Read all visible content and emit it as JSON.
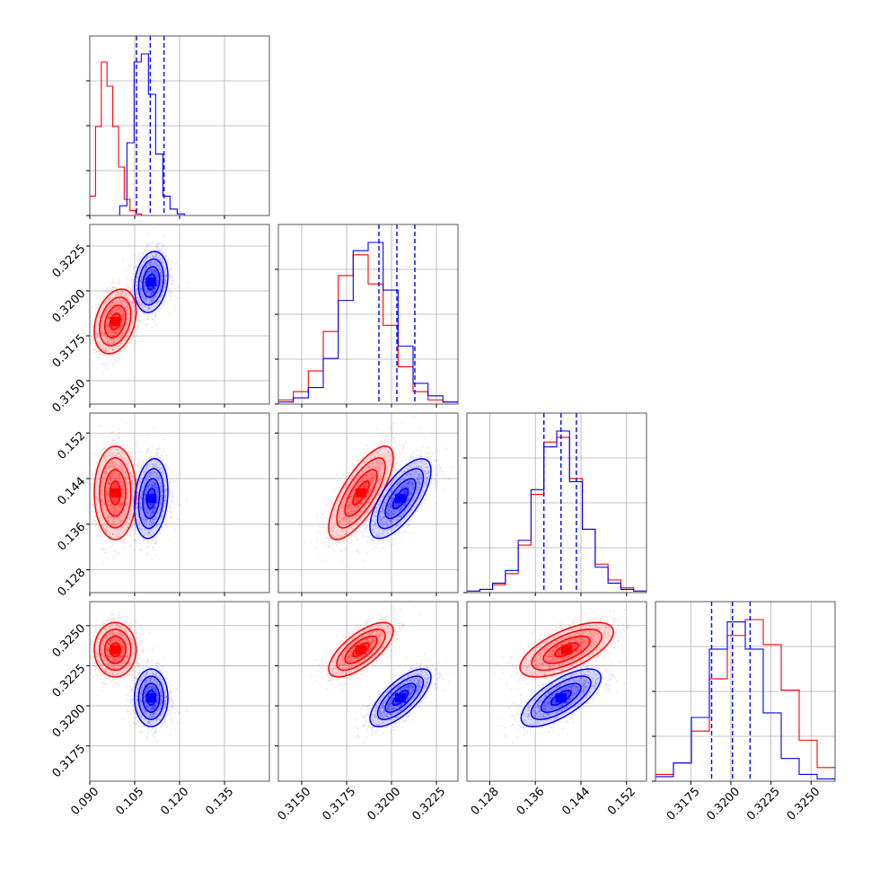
{
  "colors": {
    "red": "#ff0000",
    "blue": "#0000ff",
    "grid": "#b0b0b0",
    "frame": "#555555"
  },
  "chart_data": {
    "type": "corner",
    "parameters": [
      {
        "range": [
          0.09,
          0.15
        ],
        "ticks": [
          0.09,
          0.105,
          0.12,
          0.135
        ],
        "tick_labels": [
          "0.090",
          "0.105",
          "0.120",
          "0.135"
        ]
      },
      {
        "range": [
          0.3137,
          0.3237
        ],
        "ticks": [
          0.315,
          0.3175,
          0.32,
          0.3225
        ],
        "tick_labels": [
          "0.3150",
          "0.3175",
          "0.3200",
          "0.3225"
        ]
      },
      {
        "range": [
          0.124,
          0.1555
        ],
        "ticks": [
          0.128,
          0.136,
          0.144,
          0.152
        ],
        "tick_labels": [
          "0.128",
          "0.136",
          "0.144",
          "0.152"
        ]
      },
      {
        "range": [
          0.3153,
          0.3265
        ],
        "ticks": [
          0.3175,
          0.32,
          0.3225,
          0.325
        ],
        "tick_labels": [
          "0.3175",
          "0.3200",
          "0.3225",
          "0.3250"
        ]
      }
    ],
    "quantiles": [
      [
        0.1056,
        0.1102,
        0.1148
      ],
      [
        0.3193,
        0.3203,
        0.3213
      ],
      [
        0.1375,
        0.1405,
        0.1432
      ],
      [
        0.3188,
        0.3201,
        0.3212
      ]
    ],
    "series": [
      {
        "color": "red",
        "mean": [
          0.0985,
          0.3183,
          0.1415,
          0.3235
        ],
        "sd": [
          0.0035,
          0.0009,
          0.0041,
          0.00085
        ],
        "corr": [
          [
            0,
            0.3,
            0,
            0
          ],
          [
            0.3,
            0,
            0.75,
            0.7
          ],
          [
            0,
            0.75,
            0,
            0.65
          ],
          [
            0,
            0.7,
            0.65,
            0
          ]
        ],
        "hist_bins": [
          [
            0.09,
            0.1092
          ],
          [
            0.3137,
            0.3237
          ],
          [
            0.124,
            0.1555
          ],
          [
            0.3153,
            0.3265
          ]
        ],
        "hist_counts": [
          [
            12,
            55,
            95,
            80,
            55,
            30,
            10,
            3,
            1,
            0
          ],
          [
            2,
            6,
            16,
            35,
            62,
            72,
            58,
            38,
            18,
            6,
            2,
            1
          ],
          [
            1,
            2,
            5,
            12,
            30,
            62,
            95,
            98,
            72,
            40,
            18,
            8,
            3,
            1
          ],
          [
            3,
            8,
            22,
            45,
            64,
            71,
            60,
            40,
            18,
            6
          ]
        ]
      },
      {
        "color": "blue",
        "mean": [
          0.1105,
          0.3205,
          0.1405,
          0.3205
        ],
        "sd": [
          0.0028,
          0.00085,
          0.0035,
          0.0009
        ],
        "corr": [
          [
            0,
            0.2,
            0.2,
            0
          ],
          [
            0.2,
            0,
            0.7,
            0.72
          ],
          [
            0.2,
            0.7,
            0,
            0.7
          ],
          [
            0,
            0.72,
            0.7,
            0
          ]
        ],
        "hist_bins": [
          [
            0.1,
            0.124
          ],
          [
            0.3137,
            0.3237
          ],
          [
            0.124,
            0.1555
          ],
          [
            0.3153,
            0.3265
          ]
        ],
        "hist_counts": [
          [
            6,
            45,
            95,
            100,
            75,
            38,
            12,
            4,
            1,
            0
          ],
          [
            1,
            3,
            8,
            22,
            50,
            74,
            78,
            55,
            28,
            10,
            4,
            1
          ],
          [
            1,
            2,
            6,
            14,
            33,
            65,
            92,
            102,
            70,
            40,
            16,
            6,
            2,
            1
          ],
          [
            2,
            8,
            28,
            58,
            70,
            58,
            30,
            10,
            3,
            1
          ]
        ]
      }
    ]
  }
}
